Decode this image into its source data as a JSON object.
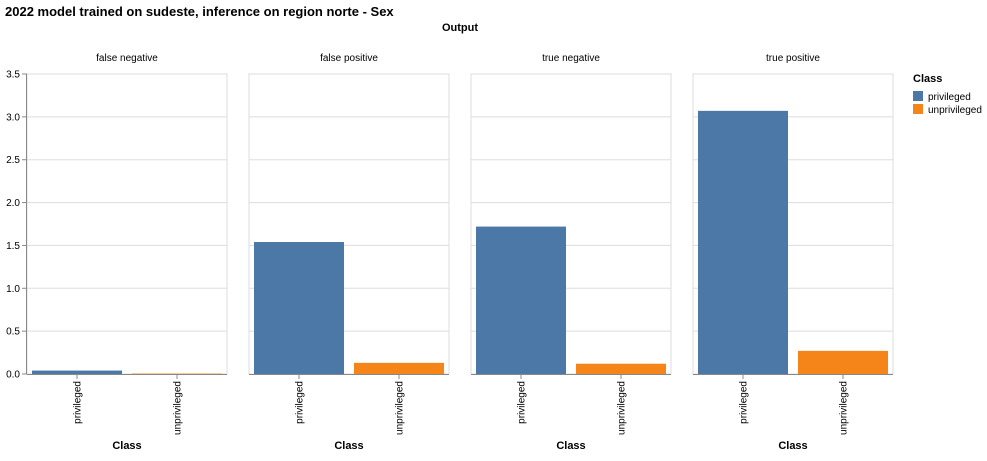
{
  "chart_data": {
    "type": "bar",
    "title": "2022 model trained on sudeste, inference on region norte - Sex",
    "facet_title": "Output",
    "ylim": [
      0,
      3.5
    ],
    "yticks": [
      "0.0",
      "0.5",
      "1.0",
      "1.5",
      "2.0",
      "2.5",
      "3.0",
      "3.5"
    ],
    "xlabel": "Class",
    "categories": [
      "privileged",
      "unprivileged"
    ],
    "legend": {
      "title": "Class",
      "position": "right",
      "entries": [
        {
          "label": "privileged",
          "color": "#4c78a8"
        },
        {
          "label": "unprivileged",
          "color": "#f58518"
        }
      ]
    },
    "panels": [
      {
        "name": "false negative",
        "values": [
          0.04,
          0.005
        ]
      },
      {
        "name": "false positive",
        "values": [
          1.54,
          0.13
        ]
      },
      {
        "name": "true negative",
        "values": [
          1.72,
          0.12
        ]
      },
      {
        "name": "true positive",
        "values": [
          3.07,
          0.27
        ]
      }
    ],
    "grid": true
  }
}
